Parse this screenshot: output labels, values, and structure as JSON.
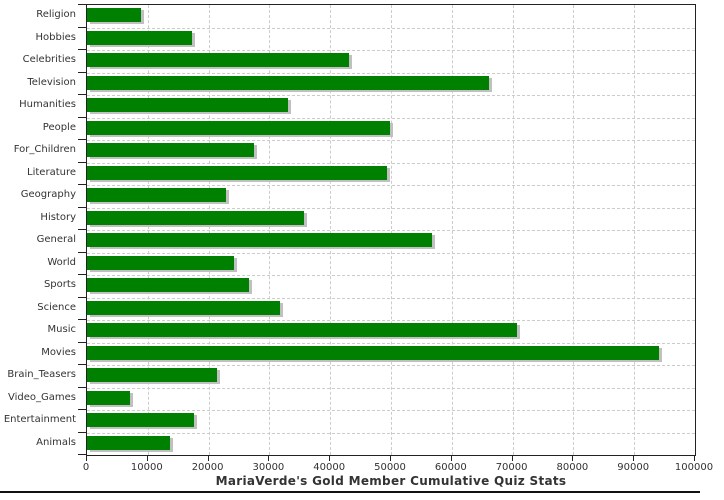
{
  "chart_data": {
    "type": "bar",
    "orientation": "horizontal",
    "title": "MariaVerde's Gold Member Cumulative Quiz Stats",
    "categories": [
      "Religion",
      "Hobbies",
      "Celebrities",
      "Television",
      "Humanities",
      "People",
      "For_Children",
      "Literature",
      "Geography",
      "History",
      "General",
      "World",
      "Sports",
      "Science",
      "Music",
      "Movies",
      "Brain_Teasers",
      "Video_Games",
      "Entertainment",
      "Animals"
    ],
    "values": [
      8800,
      17200,
      43100,
      66100,
      33000,
      49900,
      27500,
      49300,
      22900,
      35700,
      56700,
      24200,
      26700,
      31700,
      70800,
      94100,
      21300,
      7000,
      17600,
      13700
    ],
    "xlim": [
      0,
      100000
    ],
    "x_tick_labels": [
      "0",
      "10000",
      "20000",
      "30000",
      "40000",
      "50000",
      "60000",
      "70000",
      "80000",
      "90000",
      "100000"
    ],
    "xlabel": "",
    "ylabel": "",
    "legend_position": "none",
    "grid": "dashed",
    "colors": {
      "bar": "#008000",
      "bar_shadow": "#c0c0c0",
      "gridline": "#cccccc",
      "axis": "#222222",
      "text": "#333333"
    }
  }
}
